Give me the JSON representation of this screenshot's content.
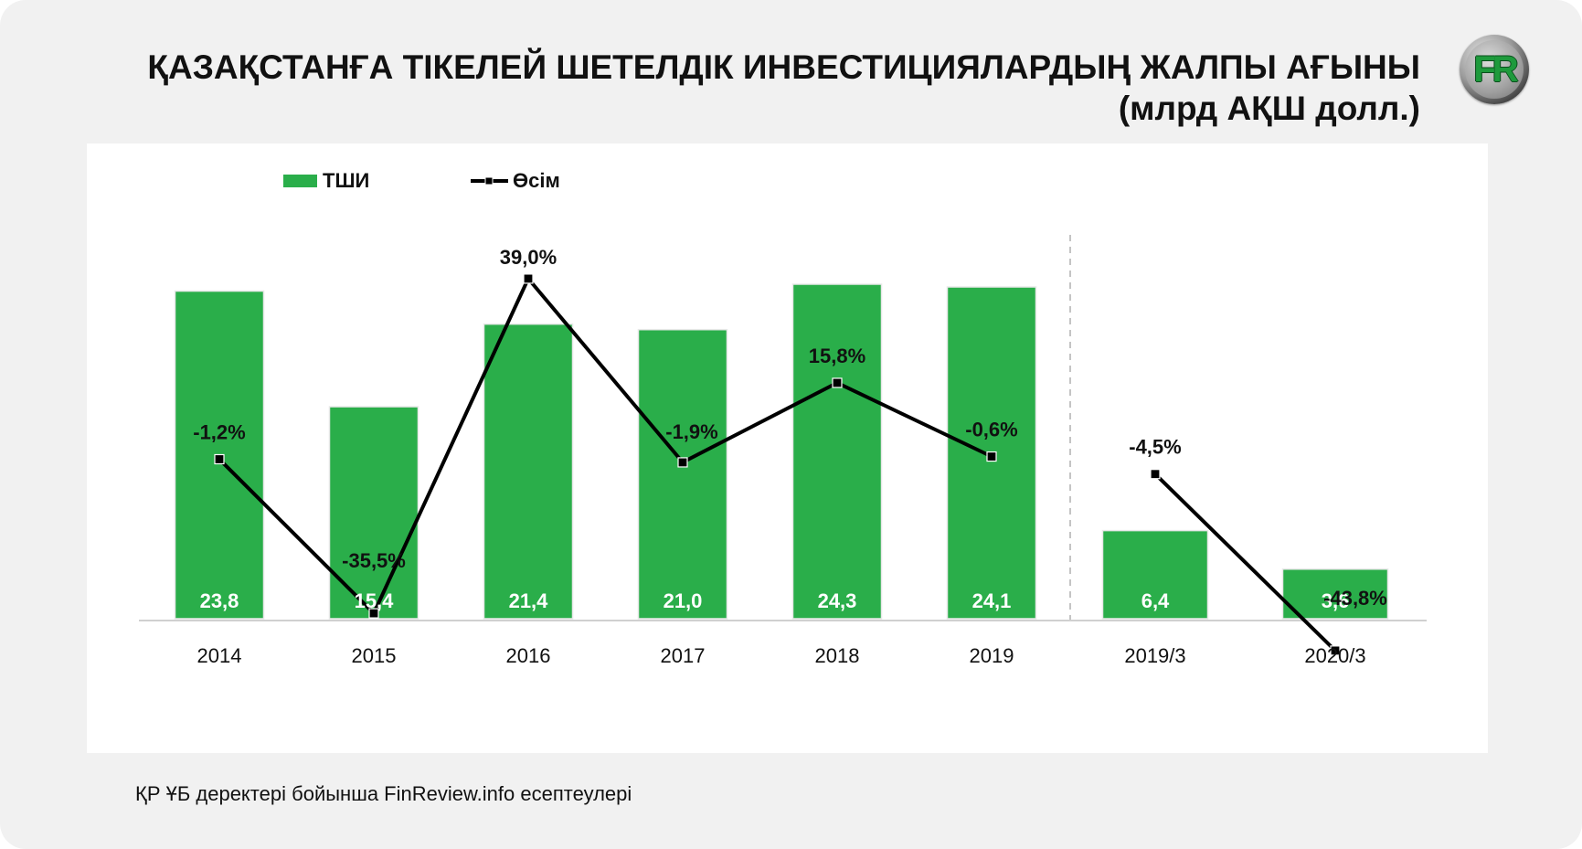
{
  "title": {
    "line1": "ҚАЗАҚСТАНҒА ТІКЕЛЕЙ ШЕТЕЛДІК ИНВЕСТИЦИЯЛАРДЫҢ ЖАЛПЫ АҒЫНЫ",
    "line2": "(млрд АҚШ долл.)"
  },
  "logo": {
    "text": "FR"
  },
  "source": "ҚР ҰБ деректері бойынша FinReview.info есептеулері",
  "colors": {
    "bar": "#2aae4a",
    "line": "#000000",
    "background": "#f1f1f1",
    "panel": "#ffffff",
    "separator": "#b0b0b0"
  },
  "chart_data": {
    "type": "bar",
    "title": "ҚАЗАҚСТАНҒА ТІКЕЛЕЙ ШЕТЕЛДІК ИНВЕСТИЦИЯЛАРДЫҢ ЖАЛПЫ АҒЫНЫ",
    "subtitle": "(млрд АҚШ долл.)",
    "categories": [
      "2014",
      "2015",
      "2016",
      "2017",
      "2018",
      "2019",
      "2019/3",
      "2020/3"
    ],
    "legend": {
      "position": "top-left",
      "entries": [
        "ТШИ",
        "Өсім"
      ]
    },
    "grid": false,
    "series": [
      {
        "name": "ТШИ",
        "type": "bar",
        "values": [
          23.8,
          15.4,
          21.4,
          21.0,
          24.3,
          24.1,
          6.4,
          3.6
        ],
        "labels": [
          "23,8",
          "15,4",
          "21,4",
          "21,0",
          "24,3",
          "24,1",
          "6,4",
          "3,6"
        ]
      },
      {
        "name": "Өсім",
        "type": "line",
        "values": [
          -1.2,
          -35.5,
          39.0,
          -1.9,
          15.8,
          -0.6,
          -4.5,
          -43.8
        ],
        "labels": [
          "-1,2%",
          "-35,5%",
          "39,0%",
          "-1,9%",
          "15,8%",
          "-0,6%",
          "-4,5%",
          "-43,8%"
        ],
        "segments": [
          [
            0,
            5
          ],
          [
            6,
            7
          ]
        ]
      }
    ],
    "separator_after_index": 5
  }
}
